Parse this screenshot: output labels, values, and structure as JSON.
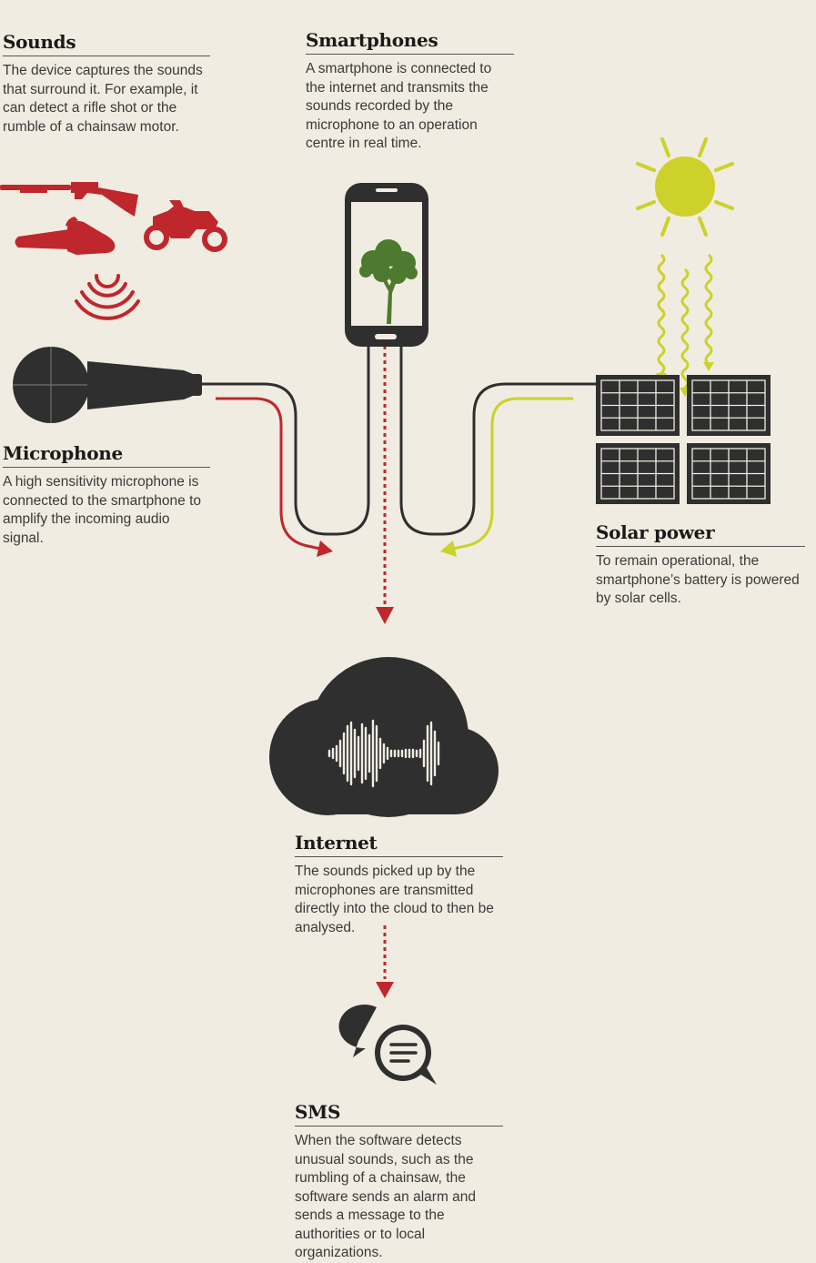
{
  "sections": {
    "sounds": {
      "title": "Sounds",
      "text": "The device captures the sounds that surround it. For example, it can detect a rifle shot or the rumble of a chainsaw motor."
    },
    "smartphones": {
      "title": "Smartphones",
      "text": "A smartphone is connected to the internet and transmits the sounds recorded by the microphone to an operation centre in real time."
    },
    "microphone": {
      "title": "Microphone",
      "text": "A high sensitivity microphone is connected to the smartphone to amplify the incoming audio signal."
    },
    "solar": {
      "title": "Solar power",
      "text": "To remain operational, the smartphone’s battery is powered by solar cells."
    },
    "internet": {
      "title": "Internet",
      "text": "The sounds picked up by the microphones are transmitted directly into the cloud to then be analysed."
    },
    "sms": {
      "title": "SMS",
      "text": "When the software detects unusual sounds, such as the rumbling of a chainsaw, the software sends an alarm and sends a message to the authorities or to local organizations."
    }
  },
  "icons": [
    "rifle-icon",
    "chainsaw-icon",
    "motorbike-icon",
    "sound-waves-icon",
    "microphone-icon",
    "smartphone-icon",
    "tree-icon",
    "sun-icon",
    "solar-panel-icon",
    "cloud-icon",
    "audio-waveform-icon",
    "chat-bubbles-icon"
  ],
  "colors": {
    "background": "#f0ece1",
    "dark": "#2f2f2f",
    "red": "#c0272d",
    "sun_yellow": "#cdd12a",
    "tree_green": "#4d7a2e"
  }
}
